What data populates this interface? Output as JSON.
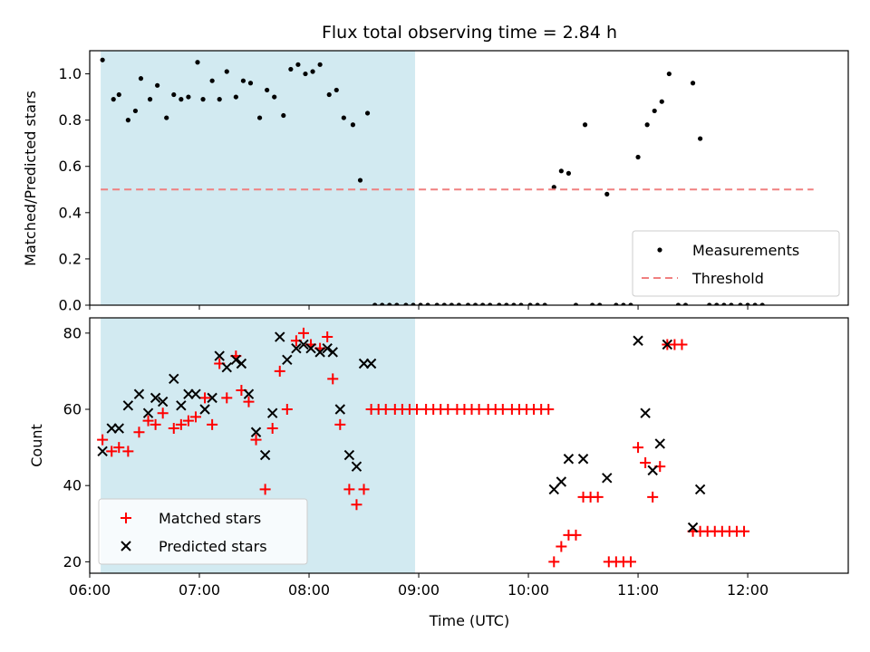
{
  "chart_data": [
    {
      "type": "scatter",
      "title": "Flux total observing time = 2.84 h",
      "xlabel": "",
      "ylabel": "Matched/Predicted stars",
      "xlim": [
        "06:00",
        "12:55"
      ],
      "ylim": [
        0,
        1.1
      ],
      "yticks": [
        "0.0",
        "0.2",
        "0.4",
        "0.6",
        "0.8",
        "1.0"
      ],
      "xticks": [
        "06:00",
        "07:00",
        "08:00",
        "09:00",
        "10:00",
        "11:00",
        "12:00"
      ],
      "shaded_span": [
        "06:06",
        "08:58"
      ],
      "shade_color": "#add8e6",
      "legend_position": "lower right",
      "series": [
        {
          "name": "Measurements",
          "color": "#000000",
          "marker": "dot",
          "points": [
            [
              "06:07",
              1.06
            ],
            [
              "06:13",
              0.89
            ],
            [
              "06:16",
              0.91
            ],
            [
              "06:21",
              0.8
            ],
            [
              "06:25",
              0.84
            ],
            [
              "06:28",
              0.98
            ],
            [
              "06:33",
              0.89
            ],
            [
              "06:37",
              0.95
            ],
            [
              "06:42",
              0.81
            ],
            [
              "06:46",
              0.91
            ],
            [
              "06:50",
              0.89
            ],
            [
              "06:54",
              0.9
            ],
            [
              "06:59",
              1.05
            ],
            [
              "07:02",
              0.89
            ],
            [
              "07:07",
              0.97
            ],
            [
              "07:11",
              0.89
            ],
            [
              "07:15",
              1.01
            ],
            [
              "07:20",
              0.9
            ],
            [
              "07:24",
              0.97
            ],
            [
              "07:28",
              0.96
            ],
            [
              "07:33",
              0.81
            ],
            [
              "07:37",
              0.93
            ],
            [
              "07:41",
              0.9
            ],
            [
              "07:46",
              0.82
            ],
            [
              "07:50",
              1.02
            ],
            [
              "07:54",
              1.04
            ],
            [
              "07:58",
              1.0
            ],
            [
              "08:02",
              1.01
            ],
            [
              "08:06",
              1.04
            ],
            [
              "08:11",
              0.91
            ],
            [
              "08:15",
              0.93
            ],
            [
              "08:19",
              0.81
            ],
            [
              "08:24",
              0.78
            ],
            [
              "08:28",
              0.54
            ],
            [
              "08:32",
              0.83
            ],
            [
              "08:36",
              0.0
            ],
            [
              "08:40",
              0.0
            ],
            [
              "08:44",
              0.0
            ],
            [
              "08:48",
              0.0
            ],
            [
              "08:53",
              0.0
            ],
            [
              "08:57",
              0.0
            ],
            [
              "09:01",
              0.0
            ],
            [
              "09:05",
              0.0
            ],
            [
              "09:10",
              0.0
            ],
            [
              "09:14",
              0.0
            ],
            [
              "09:18",
              0.0
            ],
            [
              "09:22",
              0.0
            ],
            [
              "09:27",
              0.0
            ],
            [
              "09:31",
              0.0
            ],
            [
              "09:35",
              0.0
            ],
            [
              "09:39",
              0.0
            ],
            [
              "09:44",
              0.0
            ],
            [
              "09:48",
              0.0
            ],
            [
              "09:52",
              0.0
            ],
            [
              "09:56",
              0.0
            ],
            [
              "10:01",
              0.0
            ],
            [
              "10:05",
              0.0
            ],
            [
              "10:09",
              0.0
            ],
            [
              "10:14",
              0.51
            ],
            [
              "10:18",
              0.58
            ],
            [
              "10:22",
              0.57
            ],
            [
              "10:26",
              0.0
            ],
            [
              "10:31",
              0.78
            ],
            [
              "10:35",
              0.0
            ],
            [
              "10:39",
              0.0
            ],
            [
              "10:43",
              0.48
            ],
            [
              "10:48",
              0.0
            ],
            [
              "10:52",
              0.0
            ],
            [
              "10:56",
              0.0
            ],
            [
              "11:00",
              0.64
            ],
            [
              "11:05",
              0.78
            ],
            [
              "11:09",
              0.84
            ],
            [
              "11:13",
              0.88
            ],
            [
              "11:17",
              1.0
            ],
            [
              "11:22",
              0.0
            ],
            [
              "11:26",
              0.0
            ],
            [
              "11:30",
              0.96
            ],
            [
              "11:34",
              0.72
            ],
            [
              "11:39",
              0.0
            ],
            [
              "11:43",
              0.0
            ],
            [
              "11:47",
              0.0
            ],
            [
              "11:51",
              0.0
            ],
            [
              "11:56",
              0.0
            ],
            [
              "12:00",
              0.0
            ],
            [
              "12:04",
              0.0
            ],
            [
              "12:08",
              0.0
            ]
          ]
        },
        {
          "name": "Threshold",
          "color": "#f08080",
          "style": "dashed",
          "points": [
            [
              "06:06",
              0.5
            ],
            [
              "12:36",
              0.5
            ]
          ]
        }
      ]
    },
    {
      "type": "scatter",
      "xlabel": "Time (UTC)",
      "ylabel": "Count",
      "xlim": [
        "06:00",
        "12:55"
      ],
      "ylim": [
        17,
        84
      ],
      "yticks": [
        "20",
        "40",
        "60",
        "80"
      ],
      "xticks": [
        "06:00",
        "07:00",
        "08:00",
        "09:00",
        "10:00",
        "11:00",
        "12:00"
      ],
      "shaded_span": [
        "06:06",
        "08:58"
      ],
      "shade_color": "#add8e6",
      "legend_position": "lower left",
      "series": [
        {
          "name": "Matched stars",
          "color": "#ff0000",
          "marker": "plus",
          "points": [
            [
              "06:07",
              52
            ],
            [
              "06:12",
              49
            ],
            [
              "06:16",
              50
            ],
            [
              "06:21",
              49
            ],
            [
              "06:27",
              54
            ],
            [
              "06:32",
              57
            ],
            [
              "06:36",
              56
            ],
            [
              "06:40",
              59
            ],
            [
              "06:46",
              55
            ],
            [
              "06:50",
              56
            ],
            [
              "06:54",
              57
            ],
            [
              "06:58",
              58
            ],
            [
              "07:03",
              63
            ],
            [
              "07:07",
              56
            ],
            [
              "07:11",
              72
            ],
            [
              "07:15",
              63
            ],
            [
              "07:20",
              74
            ],
            [
              "07:23",
              65
            ],
            [
              "07:27",
              62
            ],
            [
              "07:31",
              52
            ],
            [
              "07:36",
              39
            ],
            [
              "07:40",
              55
            ],
            [
              "07:44",
              70
            ],
            [
              "07:48",
              60
            ],
            [
              "07:53",
              78
            ],
            [
              "07:57",
              80
            ],
            [
              "08:01",
              77
            ],
            [
              "08:06",
              76
            ],
            [
              "08:10",
              79
            ],
            [
              "08:13",
              68
            ],
            [
              "08:17",
              56
            ],
            [
              "08:22",
              39
            ],
            [
              "08:26",
              35
            ],
            [
              "08:30",
              39
            ],
            [
              "08:34",
              60
            ],
            [
              "08:38",
              60
            ],
            [
              "08:42",
              60
            ],
            [
              "08:47",
              60
            ],
            [
              "08:51",
              60
            ],
            [
              "08:55",
              60
            ],
            [
              "08:59",
              60
            ],
            [
              "09:04",
              60
            ],
            [
              "09:08",
              60
            ],
            [
              "09:12",
              60
            ],
            [
              "09:16",
              60
            ],
            [
              "09:21",
              60
            ],
            [
              "09:25",
              60
            ],
            [
              "09:29",
              60
            ],
            [
              "09:33",
              60
            ],
            [
              "09:38",
              60
            ],
            [
              "09:42",
              60
            ],
            [
              "09:46",
              60
            ],
            [
              "09:51",
              60
            ],
            [
              "09:55",
              60
            ],
            [
              "09:59",
              60
            ],
            [
              "10:03",
              60
            ],
            [
              "10:07",
              60
            ],
            [
              "10:11",
              60
            ],
            [
              "10:14",
              20
            ],
            [
              "10:18",
              24
            ],
            [
              "10:22",
              27
            ],
            [
              "10:26",
              27
            ],
            [
              "10:30",
              37
            ],
            [
              "10:34",
              37
            ],
            [
              "10:38",
              37
            ],
            [
              "10:44",
              20
            ],
            [
              "10:48",
              20
            ],
            [
              "10:52",
              20
            ],
            [
              "10:56",
              20
            ],
            [
              "11:00",
              50
            ],
            [
              "11:04",
              46
            ],
            [
              "11:08",
              37
            ],
            [
              "11:12",
              45
            ],
            [
              "11:16",
              77
            ],
            [
              "11:20",
              77
            ],
            [
              "11:24",
              77
            ],
            [
              "11:30",
              28
            ],
            [
              "11:34",
              28
            ],
            [
              "11:38",
              28
            ],
            [
              "11:42",
              28
            ],
            [
              "11:46",
              28
            ],
            [
              "11:50",
              28
            ],
            [
              "11:54",
              28
            ],
            [
              "11:58",
              28
            ]
          ]
        },
        {
          "name": "Predicted stars",
          "color": "#000000",
          "marker": "x",
          "points": [
            [
              "06:07",
              49
            ],
            [
              "06:12",
              55
            ],
            [
              "06:16",
              55
            ],
            [
              "06:21",
              61
            ],
            [
              "06:27",
              64
            ],
            [
              "06:32",
              59
            ],
            [
              "06:36",
              63
            ],
            [
              "06:40",
              62
            ],
            [
              "06:46",
              68
            ],
            [
              "06:50",
              61
            ],
            [
              "06:54",
              64
            ],
            [
              "06:58",
              64
            ],
            [
              "07:03",
              60
            ],
            [
              "07:07",
              63
            ],
            [
              "07:11",
              74
            ],
            [
              "07:15",
              71
            ],
            [
              "07:20",
              73
            ],
            [
              "07:23",
              72
            ],
            [
              "07:27",
              64
            ],
            [
              "07:31",
              54
            ],
            [
              "07:36",
              48
            ],
            [
              "07:40",
              59
            ],
            [
              "07:44",
              79
            ],
            [
              "07:48",
              73
            ],
            [
              "07:53",
              76
            ],
            [
              "07:57",
              77
            ],
            [
              "08:01",
              76
            ],
            [
              "08:06",
              75
            ],
            [
              "08:10",
              76
            ],
            [
              "08:13",
              75
            ],
            [
              "08:17",
              60
            ],
            [
              "08:22",
              48
            ],
            [
              "08:26",
              45
            ],
            [
              "08:30",
              72
            ],
            [
              "08:34",
              72
            ],
            [
              "10:14",
              39
            ],
            [
              "10:18",
              41
            ],
            [
              "10:22",
              47
            ],
            [
              "10:30",
              47
            ],
            [
              "10:43",
              42
            ],
            [
              "11:00",
              78
            ],
            [
              "11:04",
              59
            ],
            [
              "11:08",
              44
            ],
            [
              "11:12",
              51
            ],
            [
              "11:16",
              77
            ],
            [
              "11:30",
              29
            ],
            [
              "11:34",
              39
            ]
          ]
        }
      ]
    }
  ]
}
